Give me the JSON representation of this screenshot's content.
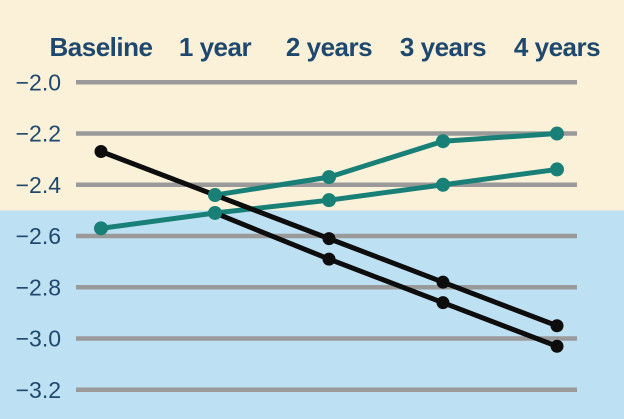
{
  "chart": {
    "x_axis_labels": [
      "Baseline",
      "1 year",
      "2 years",
      "3 years",
      "4 years"
    ],
    "y_axis_labels": [
      "−2.0",
      "−2.2",
      "−2.4",
      "−2.6",
      "−2.8",
      "−3.0",
      "−3.2"
    ]
  },
  "colors": {
    "background_above_threshold": "#FAF1D8",
    "background_below_threshold": "#BEE0F3",
    "gridline": "#9A9A9A",
    "label": "#1E486E",
    "teal": "#188076",
    "black": "#0D0D0D"
  },
  "chart_data": {
    "type": "line",
    "categories": [
      "Baseline",
      "1 year",
      "2 years",
      "3 years",
      "4 years"
    ],
    "y_ticks": [
      -2.0,
      -2.2,
      -2.4,
      -2.6,
      -2.8,
      -3.0,
      -3.2
    ],
    "ylim": [
      -3.31,
      -1.68
    ],
    "grid": true,
    "legend": false,
    "threshold": -2.5,
    "series": [
      {
        "name": "teal-rising-upper",
        "color": "#188076",
        "values": [
          null,
          -2.44,
          -2.37,
          -2.23,
          -2.2
        ]
      },
      {
        "name": "teal-rising-lower",
        "color": "#188076",
        "values": [
          -2.57,
          -2.51,
          -2.46,
          -2.4,
          -2.34
        ]
      },
      {
        "name": "black-declining-upper",
        "color": "#0D0D0D",
        "values": [
          -2.27,
          -2.44,
          -2.61,
          -2.78,
          -2.95
        ]
      },
      {
        "name": "black-declining-lower",
        "color": "#0D0D0D",
        "values": [
          null,
          -2.51,
          -2.69,
          -2.86,
          -3.03
        ]
      }
    ]
  }
}
